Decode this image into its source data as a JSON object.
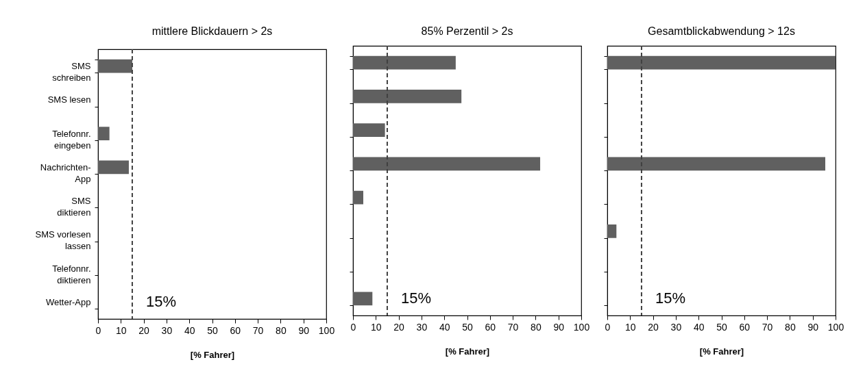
{
  "chart_data": [
    {
      "type": "bar",
      "orientation": "horizontal",
      "title": "mittlere Blickdauern > 2s",
      "xlabel": "[% Fahrer]",
      "categories": [
        "SMS\nschreiben",
        "SMS lesen",
        "Telefonnr.\neingeben",
        "Nachrichten-\nApp",
        "SMS\ndiktieren",
        "SMS vorlesen\nlassen",
        "Telefonnr.\ndiktieren",
        "Wetter-App"
      ],
      "values": [
        15,
        0,
        5,
        13.5,
        0,
        0,
        0,
        0
      ],
      "color": "#606060",
      "xlim": [
        0,
        100
      ],
      "xticks": [
        0,
        10,
        20,
        30,
        40,
        50,
        60,
        70,
        80,
        90,
        100
      ],
      "ref_lines": [
        {
          "axis": "x",
          "value": 15,
          "label": "15%",
          "line_style": "dashed",
          "color": "#404040"
        }
      ]
    },
    {
      "type": "bar",
      "orientation": "horizontal",
      "title": "85% Perzentil > 2s",
      "xlabel": "[% Fahrer]",
      "values": [
        45,
        47.5,
        14,
        82,
        4.5,
        0,
        0,
        8.5
      ],
      "color": "#606060",
      "xlim": [
        0,
        100
      ],
      "xticks": [
        0,
        10,
        20,
        30,
        40,
        50,
        60,
        70,
        80,
        90,
        100
      ],
      "tick_labels": "x",
      "ref_lines": [
        {
          "axis": "x",
          "value": 15,
          "label": "15%",
          "line_style": "dashed",
          "color": "#404040"
        }
      ]
    },
    {
      "type": "bar",
      "orientation": "horizontal",
      "title": "Gesamtblickabwendung > 12s",
      "xlabel": "[% Fahrer]",
      "values": [
        100,
        0,
        0,
        95.5,
        0,
        4,
        0,
        0
      ],
      "color": "#606060",
      "xlim": [
        0,
        100
      ],
      "xticks": [
        0,
        10,
        20,
        30,
        40,
        50,
        60,
        70,
        80,
        90,
        100
      ],
      "tick_labels": "x",
      "ref_lines": [
        {
          "axis": "x",
          "value": 15,
          "label": "15%",
          "line_style": "dashed",
          "color": "#404040"
        }
      ]
    }
  ]
}
